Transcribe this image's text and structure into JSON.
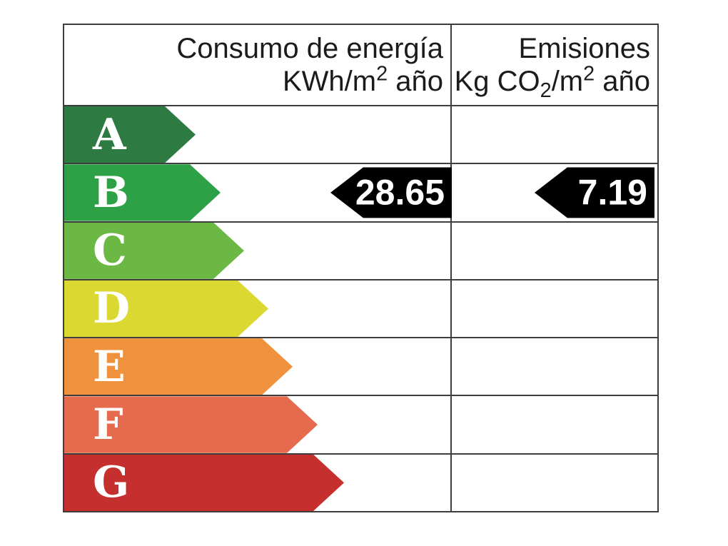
{
  "header": {
    "consumption": {
      "line1": "Consumo de energía",
      "l2a": "KWh/m",
      "l2sup": "2",
      "l2b": " año"
    },
    "emissions": {
      "line1": "Emisiones",
      "l2a": "Kg CO",
      "l2sub": "2",
      "l2b": "/m",
      "l2sup": "2",
      "l2c": " año"
    }
  },
  "ratings": [
    {
      "letter": "A",
      "color": "#2d7b43"
    },
    {
      "letter": "B",
      "color": "#2ea147"
    },
    {
      "letter": "C",
      "color": "#6cb845"
    },
    {
      "letter": "D",
      "color": "#dbd832"
    },
    {
      "letter": "E",
      "color": "#f0913d"
    },
    {
      "letter": "F",
      "color": "#e56a4e"
    },
    {
      "letter": "G",
      "color": "#c5302f"
    }
  ],
  "values": {
    "rating": "B",
    "consumption": "28.65",
    "emissions": "7.19"
  },
  "style": {
    "border_color": "#3d3d3d",
    "pointer_color": "#000000",
    "text_color": "#1b1b1b"
  },
  "chart_data": {
    "type": "table",
    "title": "Energy efficiency rating label",
    "columns": [
      "Consumo de energía KWh/m2 año",
      "Emisiones Kg CO2/m2 año"
    ],
    "categories": [
      "A",
      "B",
      "C",
      "D",
      "E",
      "F",
      "G"
    ],
    "category_colors": [
      "#2d7b43",
      "#2ea147",
      "#6cb845",
      "#dbd832",
      "#f0913d",
      "#e56a4e",
      "#c5302f"
    ],
    "indicated_rating": "B",
    "consumption_kwh_m2_year": 28.65,
    "emissions_kg_co2_m2_year": 7.19,
    "legend_position": "none",
    "grid": "table borders on"
  }
}
